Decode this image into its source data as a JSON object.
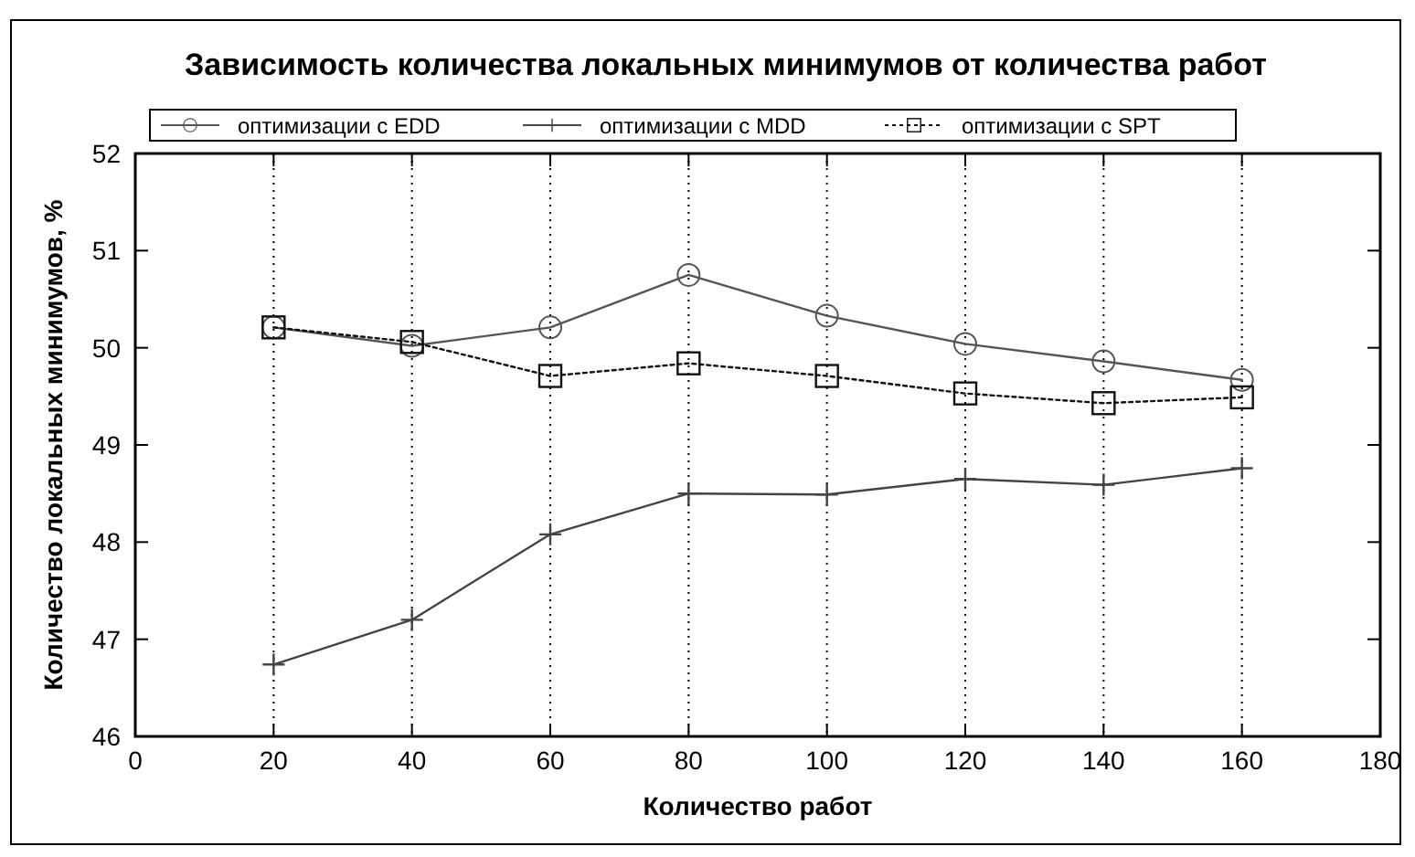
{
  "chart_data": {
    "type": "line",
    "title": "Зависимость количества локальных минимумов от количества работ",
    "xlabel": "Количество работ",
    "ylabel": "Количество локальных минимумов, %",
    "x": [
      20,
      40,
      60,
      80,
      100,
      120,
      140,
      160
    ],
    "series": [
      {
        "name": "оптимизации с EDD",
        "color": "#555555",
        "marker": "circle",
        "line_style": "solid",
        "values": [
          50.21,
          50.02,
          50.21,
          50.75,
          50.33,
          50.04,
          49.86,
          49.67
        ]
      },
      {
        "name": "оптимизации с MDD",
        "color": "#444444",
        "marker": "cross",
        "line_style": "solid",
        "values": [
          46.74,
          47.2,
          48.08,
          48.5,
          48.49,
          48.65,
          48.59,
          48.76
        ]
      },
      {
        "name": "оптимизации с SPT",
        "color": "#111111",
        "marker": "square",
        "line_style": "dotted",
        "values": [
          50.21,
          50.06,
          49.71,
          49.84,
          49.71,
          49.53,
          49.43,
          49.49
        ]
      }
    ],
    "xlim": [
      0,
      180
    ],
    "xticks": [
      0,
      20,
      40,
      60,
      80,
      100,
      120,
      140,
      160,
      180
    ],
    "ylim": [
      46,
      52
    ],
    "yticks": [
      46,
      47,
      48,
      49,
      50,
      51,
      52
    ],
    "grid": "x",
    "legend": "top"
  }
}
